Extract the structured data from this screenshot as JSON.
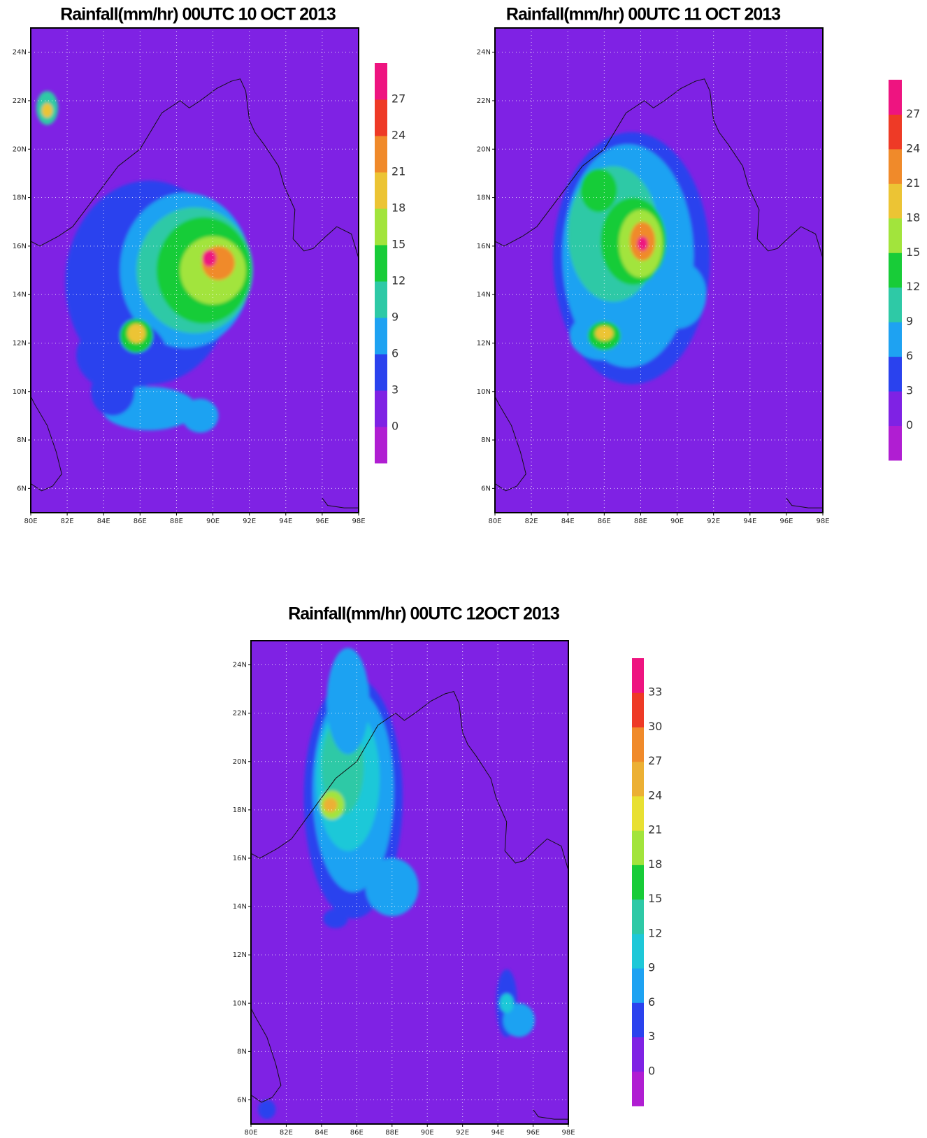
{
  "panels": [
    {
      "title": "Rainfall(mm/hr) 00UTC 10 OCT 2013",
      "xlim": [
        80,
        98
      ],
      "ylim": [
        5,
        25
      ],
      "grid": true,
      "xticks": [
        {
          "value": 80,
          "label": "80E"
        },
        {
          "value": 82,
          "label": "82E"
        },
        {
          "value": 84,
          "label": "84E"
        },
        {
          "value": 86,
          "label": "86E"
        },
        {
          "value": 88,
          "label": "88E"
        },
        {
          "value": 90,
          "label": "90E"
        },
        {
          "value": 92,
          "label": "92E"
        },
        {
          "value": 94,
          "label": "94E"
        },
        {
          "value": 96,
          "label": "96E"
        },
        {
          "value": 98,
          "label": "98E"
        }
      ],
      "yticks": [
        {
          "value": 6,
          "label": "6N"
        },
        {
          "value": 8,
          "label": "8N"
        },
        {
          "value": 10,
          "label": "10N"
        },
        {
          "value": 12,
          "label": "12N"
        },
        {
          "value": 14,
          "label": "14N"
        },
        {
          "value": 16,
          "label": "16N"
        },
        {
          "value": 18,
          "label": "18N"
        },
        {
          "value": 20,
          "label": "20N"
        },
        {
          "value": 22,
          "label": "22N"
        },
        {
          "value": 24,
          "label": "24N"
        }
      ],
      "colorbar": {
        "levels": [
          0,
          3,
          6,
          9,
          12,
          15,
          18,
          21,
          24,
          27
        ],
        "colors": [
          "#b01ed2",
          "#7f22e4",
          "#2a42ee",
          "#1ea2f2",
          "#2ec9a6",
          "#18cc38",
          "#a2e43c",
          "#ecc434",
          "#f08a2a",
          "#ee3a26",
          "#ee1480"
        ]
      }
    },
    {
      "title": "Rainfall(mm/hr) 00UTC 11 OCT 2013",
      "xlim": [
        80,
        98
      ],
      "ylim": [
        5,
        25
      ],
      "grid": true,
      "xticks": [
        {
          "value": 80,
          "label": "80E"
        },
        {
          "value": 82,
          "label": "82E"
        },
        {
          "value": 84,
          "label": "84E"
        },
        {
          "value": 86,
          "label": "86E"
        },
        {
          "value": 88,
          "label": "88E"
        },
        {
          "value": 90,
          "label": "90E"
        },
        {
          "value": 92,
          "label": "92E"
        },
        {
          "value": 94,
          "label": "94E"
        },
        {
          "value": 96,
          "label": "96E"
        },
        {
          "value": 98,
          "label": "98E"
        }
      ],
      "yticks": [
        {
          "value": 6,
          "label": "6N"
        },
        {
          "value": 8,
          "label": "8N"
        },
        {
          "value": 10,
          "label": "10N"
        },
        {
          "value": 12,
          "label": "12N"
        },
        {
          "value": 14,
          "label": "14N"
        },
        {
          "value": 16,
          "label": "16N"
        },
        {
          "value": 18,
          "label": "18N"
        },
        {
          "value": 20,
          "label": "20N"
        },
        {
          "value": 22,
          "label": "22N"
        },
        {
          "value": 24,
          "label": "24N"
        }
      ],
      "colorbar": {
        "levels": [
          0,
          3,
          6,
          9,
          12,
          15,
          18,
          21,
          24,
          27
        ],
        "colors": [
          "#b01ed2",
          "#7f22e4",
          "#2a42ee",
          "#1ea2f2",
          "#2ec9a6",
          "#18cc38",
          "#a2e43c",
          "#ecc434",
          "#f08a2a",
          "#ee3a26",
          "#ee1480"
        ]
      }
    },
    {
      "title": "Rainfall(mm/hr) 00UTC 12OCT 2013",
      "xlim": [
        80,
        98
      ],
      "ylim": [
        5,
        25
      ],
      "grid": true,
      "xticks": [
        {
          "value": 80,
          "label": "80E"
        },
        {
          "value": 82,
          "label": "82E"
        },
        {
          "value": 84,
          "label": "84E"
        },
        {
          "value": 86,
          "label": "86E"
        },
        {
          "value": 88,
          "label": "88E"
        },
        {
          "value": 90,
          "label": "90E"
        },
        {
          "value": 92,
          "label": "92E"
        },
        {
          "value": 94,
          "label": "94E"
        },
        {
          "value": 96,
          "label": "96E"
        },
        {
          "value": 98,
          "label": "98E"
        }
      ],
      "yticks": [
        {
          "value": 6,
          "label": "6N"
        },
        {
          "value": 8,
          "label": "8N"
        },
        {
          "value": 10,
          "label": "10N"
        },
        {
          "value": 12,
          "label": "12N"
        },
        {
          "value": 14,
          "label": "14N"
        },
        {
          "value": 16,
          "label": "16N"
        },
        {
          "value": 18,
          "label": "18N"
        },
        {
          "value": 20,
          "label": "20N"
        },
        {
          "value": 22,
          "label": "22N"
        },
        {
          "value": 24,
          "label": "24N"
        }
      ],
      "colorbar": {
        "levels": [
          0,
          3,
          6,
          9,
          12,
          15,
          18,
          21,
          24,
          27,
          30,
          33
        ],
        "colors": [
          "#b01ed2",
          "#7f22e4",
          "#2a42ee",
          "#1ea2f2",
          "#1ec8d8",
          "#2ec9a6",
          "#18cc38",
          "#a2e43c",
          "#e8e032",
          "#ecb034",
          "#f08a2a",
          "#ee3a26",
          "#ee1480"
        ]
      }
    }
  ]
}
